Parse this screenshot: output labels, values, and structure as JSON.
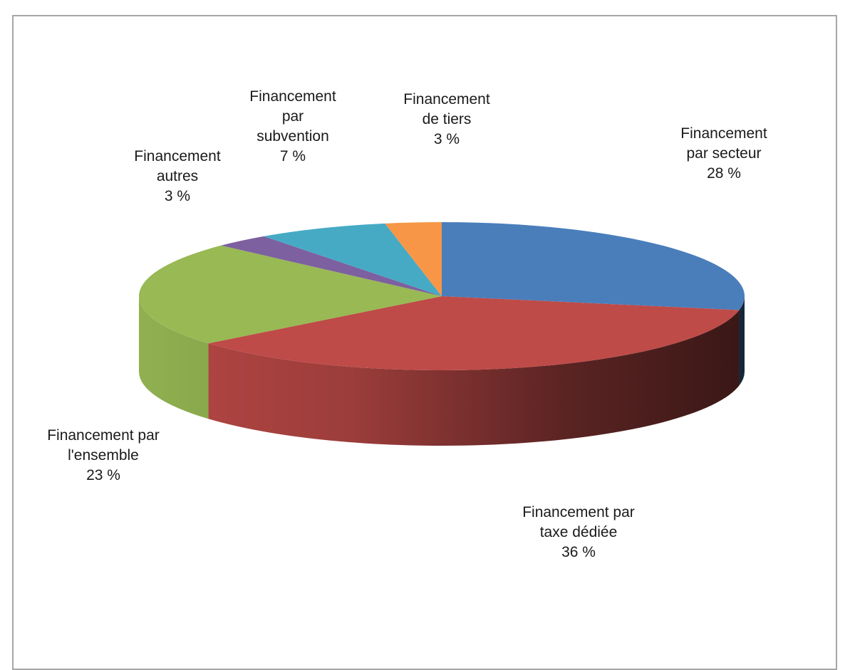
{
  "chart_data": {
    "type": "pie",
    "three_d": true,
    "start_angle_deg": 0,
    "direction": "clockwise",
    "slices": [
      {
        "label_lines": [
          "Financement",
          "par secteur"
        ],
        "percent_text": "28 %",
        "value": 28,
        "color": "#4a7ebb"
      },
      {
        "label_lines": [
          "Financement par",
          "taxe dédiée"
        ],
        "percent_text": "36 %",
        "value": 36,
        "color": "#be4b48"
      },
      {
        "label_lines": [
          "Financement par",
          "l'ensemble"
        ],
        "percent_text": "23 %",
        "value": 23,
        "color": "#98b954"
      },
      {
        "label_lines": [
          "Financement",
          "autres"
        ],
        "percent_text": "3 %",
        "value": 3,
        "color": "#7d60a0"
      },
      {
        "label_lines": [
          "Financement",
          "par",
          "subvention"
        ],
        "percent_text": "7 %",
        "value": 7,
        "color": "#46aac5"
      },
      {
        "label_lines": [
          "Financement",
          "de tiers"
        ],
        "percent_text": "3 %",
        "value": 3,
        "color": "#f79646"
      }
    ]
  }
}
